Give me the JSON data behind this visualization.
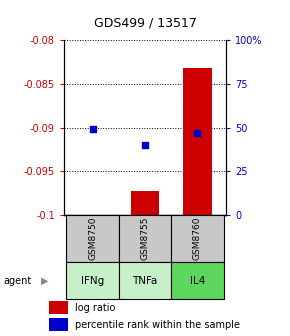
{
  "title": "GDS499 / 13517",
  "samples": [
    "GSM8750",
    "GSM8755",
    "GSM8760"
  ],
  "agents": [
    "IFNg",
    "TNFa",
    "IL4"
  ],
  "log_ratios": [
    -0.1002,
    -0.0972,
    -0.0832
  ],
  "percentile_ranks": [
    49,
    40,
    47
  ],
  "ylim_left": [
    -0.1,
    -0.08
  ],
  "ylim_right": [
    0,
    100
  ],
  "yticks_left": [
    -0.1,
    -0.095,
    -0.09,
    -0.085,
    -0.08
  ],
  "yticks_right": [
    0,
    25,
    50,
    75,
    100
  ],
  "ytick_labels_left": [
    "-0.1",
    "-0.095",
    "-0.09",
    "-0.085",
    "-0.08"
  ],
  "ytick_labels_right": [
    "0",
    "25",
    "50",
    "75",
    "100%"
  ],
  "bar_color": "#cc0000",
  "dot_color": "#0000cc",
  "sample_box_color": "#c8c8c8",
  "agent_colors": [
    "#c8f0c8",
    "#c8f0c8",
    "#5cd65c"
  ],
  "agent_label": "agent",
  "legend_bar_label": "log ratio",
  "legend_dot_label": "percentile rank within the sample",
  "grid_color": "#888888",
  "title_color": "#000000",
  "left_tick_color": "#cc0000",
  "right_tick_color": "#0000cc",
  "bar_width": 0.55
}
